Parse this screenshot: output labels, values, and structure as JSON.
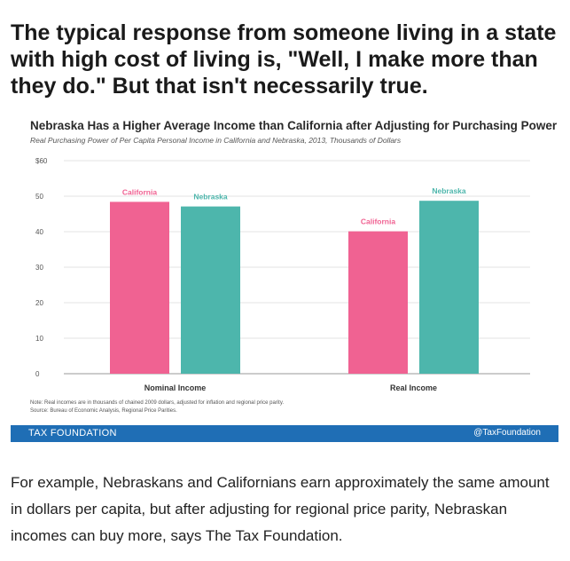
{
  "headline": "The typical response from someone living in a state with high cost of living is, \"Well, I make more than they do.\" But that isn't necessarily true.",
  "chart": {
    "title": "Nebraska Has a Higher Average Income than California after Adjusting for Purchasing Power",
    "subtitle": "Real Purchasing Power of Per Capita Personal Income in California and Nebraska, 2013, Thousands of Dollars",
    "note_line1": "Note: Real incomes are in thousands of chained 2009 dollars, adjusted for inflation and regional price parity.",
    "note_line2": "Source: Bureau of Economic Analysis, Regional Price Parities."
  },
  "chart_data": {
    "type": "bar",
    "categories": [
      "Nominal Income",
      "Real Income"
    ],
    "series": [
      {
        "name": "California",
        "values": [
          48.4,
          40.1
        ],
        "color": "#f06292"
      },
      {
        "name": "Nebraska",
        "values": [
          47.1,
          48.7
        ],
        "color": "#4db6ac"
      }
    ],
    "ylim": [
      0,
      60
    ],
    "yticks": [
      "0",
      "10",
      "20",
      "30",
      "40",
      "50",
      "$60"
    ],
    "grid": true,
    "legend": "data labels above bars"
  },
  "footer": {
    "left": "TAX FOUNDATION",
    "right": "@TaxFoundation",
    "color": "#1f6eb5"
  },
  "caption": "For example, Nebraskans and Californians earn approximately the same amount in dollars per capita, but after adjusting for regional price parity, Nebraskan incomes can buy more, says The Tax Foundation."
}
